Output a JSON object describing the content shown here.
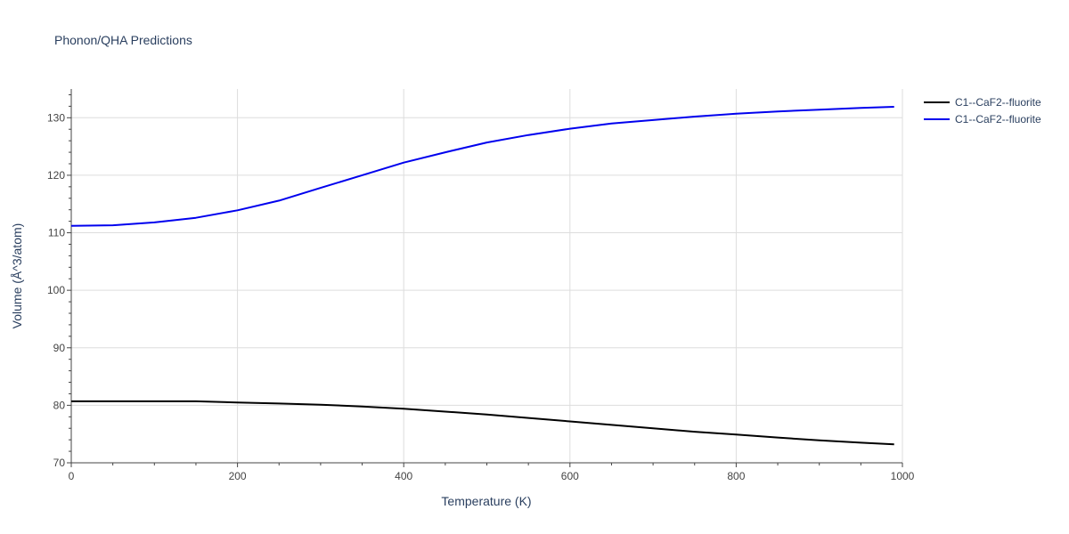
{
  "chart_data": {
    "type": "line",
    "title": "Phonon/QHA Predictions",
    "xlabel": "Temperature (K)",
    "ylabel": "Volume (Å^3/atom)",
    "xlim": [
      0,
      1000
    ],
    "ylim": [
      70,
      135
    ],
    "xticks": [
      0,
      200,
      400,
      600,
      800,
      1000
    ],
    "yticks": [
      70,
      80,
      90,
      100,
      110,
      120,
      130
    ],
    "grid": true,
    "legend_position": "top-right",
    "series": [
      {
        "name": "C1--CaF2--fluorite",
        "color": "#000000",
        "x": [
          0,
          50,
          100,
          150,
          200,
          250,
          300,
          350,
          400,
          450,
          500,
          550,
          600,
          650,
          700,
          750,
          800,
          850,
          900,
          950,
          990
        ],
        "y": [
          80.7,
          80.7,
          80.7,
          80.7,
          80.5,
          80.3,
          80.1,
          79.8,
          79.4,
          78.9,
          78.4,
          77.8,
          77.2,
          76.6,
          76.0,
          75.4,
          74.9,
          74.4,
          73.9,
          73.5,
          73.2
        ]
      },
      {
        "name": "C1--CaF2--fluorite",
        "color": "#0000ee",
        "x": [
          0,
          50,
          100,
          150,
          200,
          250,
          300,
          350,
          400,
          450,
          500,
          550,
          600,
          650,
          700,
          750,
          800,
          850,
          900,
          950,
          990
        ],
        "y": [
          111.2,
          111.3,
          111.8,
          112.6,
          113.9,
          115.6,
          117.8,
          120.0,
          122.2,
          124.0,
          125.7,
          127.0,
          128.1,
          129.0,
          129.6,
          130.2,
          130.7,
          131.1,
          131.4,
          131.7,
          131.9
        ]
      }
    ]
  }
}
